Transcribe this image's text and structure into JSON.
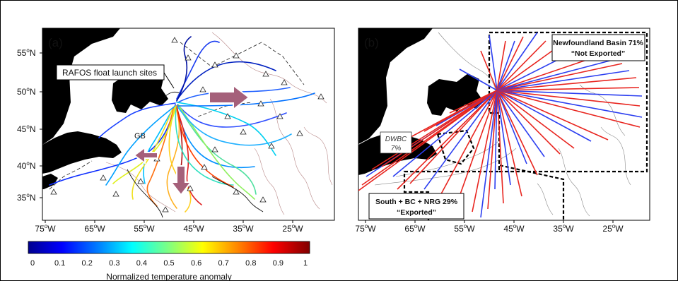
{
  "panel_a": {
    "letter": "(a)",
    "launch_label": "RAFOS float launch sites",
    "gb_label": "GB",
    "lat_ticks": [
      {
        "deg": "55",
        "unit": "o",
        "hem": "N"
      },
      {
        "deg": "50",
        "unit": "o",
        "hem": "N"
      },
      {
        "deg": "45",
        "unit": "o",
        "hem": "N"
      },
      {
        "deg": "40",
        "unit": "o",
        "hem": "N"
      },
      {
        "deg": "35",
        "unit": "o",
        "hem": "N"
      }
    ],
    "lon_ticks": [
      {
        "deg": "75",
        "unit": "o",
        "hem": "W"
      },
      {
        "deg": "65",
        "unit": "o",
        "hem": "W"
      },
      {
        "deg": "55",
        "unit": "o",
        "hem": "W"
      },
      {
        "deg": "45",
        "unit": "o",
        "hem": "W"
      },
      {
        "deg": "35",
        "unit": "o",
        "hem": "W"
      },
      {
        "deg": "25",
        "unit": "o",
        "hem": "W"
      }
    ],
    "colorbar": {
      "ticks": [
        "0",
        "0.1",
        "0.2",
        "0.3",
        "0.4",
        "0.5",
        "0.6",
        "0.7",
        "0.8",
        "0.9",
        "1"
      ],
      "title": "Normalized temperature anomaly",
      "colors": [
        "#00008f",
        "#0000ff",
        "#0080ff",
        "#00ffff",
        "#80ff80",
        "#ffff00",
        "#ff8000",
        "#ff0000",
        "#800000"
      ]
    }
  },
  "panel_b": {
    "letter": "(b)",
    "newfoundland_line1": "Newfoundland Basin 71%",
    "newfoundland_line2": "“Not Exported”",
    "dwbc_line1": "DWBC",
    "dwbc_line2": "7%",
    "south_line1": "South + BC + NRG 29%",
    "south_line2": "“Exported”",
    "lon_ticks": [
      {
        "deg": "75",
        "unit": "o",
        "hem": "W"
      },
      {
        "deg": "65",
        "unit": "o",
        "hem": "W"
      },
      {
        "deg": "55",
        "unit": "o",
        "hem": "W"
      },
      {
        "deg": "45",
        "unit": "o",
        "hem": "W"
      },
      {
        "deg": "35",
        "unit": "o",
        "hem": "W"
      },
      {
        "deg": "25",
        "unit": "o",
        "hem": "W"
      }
    ],
    "series_colors": {
      "red": "#e8251f",
      "blue": "#2b3ef0"
    }
  }
}
